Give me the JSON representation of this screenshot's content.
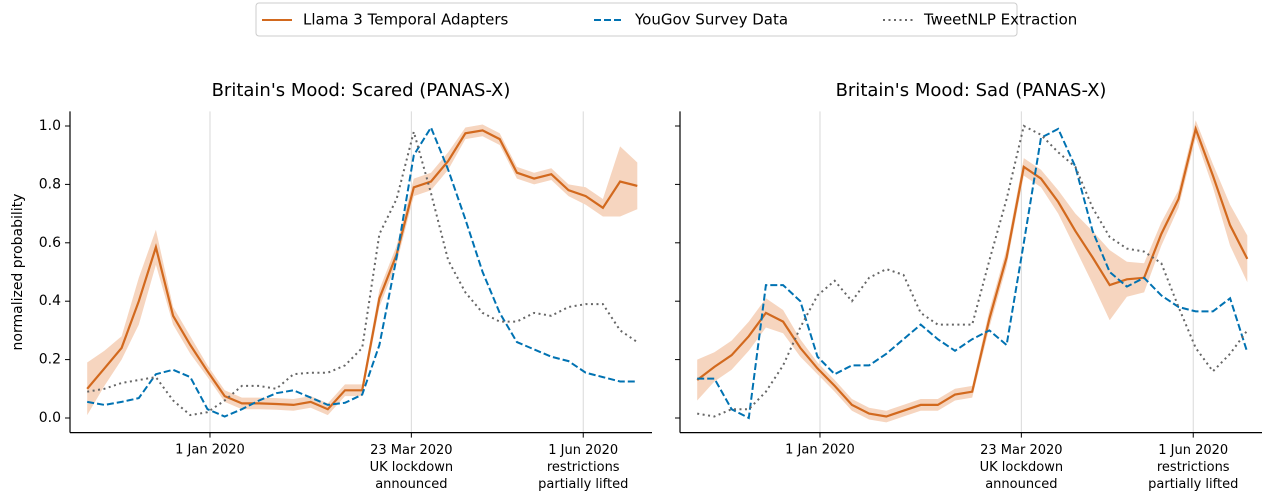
{
  "chart_data": [
    {
      "type": "line",
      "title": "Britain's Mood: Scared (PANAS-X)",
      "ylabel": "normalized probability",
      "x": [
        "2019-11-12",
        "2019-11-19",
        "2019-11-26",
        "2019-12-03",
        "2019-12-10",
        "2019-12-17",
        "2019-12-24",
        "2019-12-31",
        "2020-01-07",
        "2020-01-14",
        "2020-01-21",
        "2020-01-28",
        "2020-02-04",
        "2020-02-11",
        "2020-02-18",
        "2020-02-25",
        "2020-03-03",
        "2020-03-10",
        "2020-03-17",
        "2020-03-24",
        "2020-03-31",
        "2020-04-07",
        "2020-04-14",
        "2020-04-21",
        "2020-04-28",
        "2020-05-05",
        "2020-05-12",
        "2020-05-19",
        "2020-05-26",
        "2020-06-02",
        "2020-06-09",
        "2020-06-16",
        "2020-06-23"
      ],
      "xlim": [
        "2019-11-05",
        "2020-06-29"
      ],
      "xticks": [
        {
          "value": "2020-01-01",
          "label": "1 Jan 2020"
        },
        {
          "value": "2020-03-23",
          "label": "23 Mar 2020\nUK lockdown\nannounced"
        },
        {
          "value": "2020-06-01",
          "label": "1 Jun 2020\nrestrictions\npartially lifted"
        }
      ],
      "ylim": [
        -0.05,
        1.05
      ],
      "yticks": [
        {
          "value": 0,
          "label": "0.0"
        },
        0.2,
        0.4,
        0.6,
        0.8,
        {
          "value": 1,
          "label": "1.0"
        }
      ],
      "series": [
        {
          "name": "Llama 3 Temporal Adapters",
          "color": "#d2691e",
          "dash": "solid",
          "band_color": "#f6d5bf",
          "values": [
            0.1,
            0.17,
            0.24,
            0.4,
            0.585,
            0.35,
            0.25,
            0.16,
            0.075,
            0.05,
            0.05,
            0.048,
            0.045,
            0.055,
            0.03,
            0.095,
            0.095,
            0.41,
            0.56,
            0.79,
            0.81,
            0.88,
            0.975,
            0.985,
            0.955,
            0.84,
            0.82,
            0.835,
            0.78,
            0.76,
            0.72,
            0.81,
            0.795
          ],
          "errors": [
            0.09,
            0.06,
            0.04,
            0.08,
            0.06,
            0.03,
            0.03,
            0.02,
            0.02,
            0.02,
            0.02,
            0.02,
            0.02,
            0.02,
            0.02,
            0.02,
            0.02,
            0.03,
            0.03,
            0.03,
            0.03,
            0.03,
            0.02,
            0.02,
            0.02,
            0.02,
            0.02,
            0.02,
            0.02,
            0.03,
            0.03,
            0.12,
            0.08
          ]
        },
        {
          "name": "YouGov Survey Data",
          "color": "#0072b2",
          "dash": "dashed",
          "values": [
            0.055,
            0.045,
            0.055,
            0.068,
            0.15,
            0.165,
            0.14,
            0.03,
            0.005,
            0.03,
            0.06,
            0.085,
            0.095,
            0.07,
            0.045,
            0.052,
            0.08,
            0.25,
            0.55,
            0.9,
            0.995,
            0.85,
            0.68,
            0.5,
            0.36,
            0.26,
            0.235,
            0.21,
            0.195,
            0.155,
            0.14,
            0.125,
            0.125
          ]
        },
        {
          "name": "TweetNLP Extraction",
          "color": "#666666",
          "dash": "dotted",
          "values": [
            0.09,
            0.1,
            0.12,
            0.13,
            0.14,
            0.06,
            0.01,
            0.02,
            0.06,
            0.11,
            0.11,
            0.1,
            0.15,
            0.155,
            0.155,
            0.18,
            0.24,
            0.63,
            0.75,
            0.98,
            0.77,
            0.54,
            0.43,
            0.36,
            0.33,
            0.33,
            0.36,
            0.35,
            0.38,
            0.39,
            0.39,
            0.3,
            0.26
          ]
        }
      ]
    },
    {
      "type": "line",
      "title": "Britain's Mood: Sad (PANAS-X)",
      "x": [
        "2019-11-12",
        "2019-11-19",
        "2019-11-26",
        "2019-12-03",
        "2019-12-10",
        "2019-12-17",
        "2019-12-24",
        "2019-12-31",
        "2020-01-07",
        "2020-01-14",
        "2020-01-21",
        "2020-01-28",
        "2020-02-04",
        "2020-02-11",
        "2020-02-18",
        "2020-02-25",
        "2020-03-03",
        "2020-03-10",
        "2020-03-17",
        "2020-03-24",
        "2020-03-31",
        "2020-04-07",
        "2020-04-14",
        "2020-04-21",
        "2020-04-28",
        "2020-05-05",
        "2020-05-12",
        "2020-05-19",
        "2020-05-26",
        "2020-06-02",
        "2020-06-09",
        "2020-06-16",
        "2020-06-23"
      ],
      "xlim": [
        "2019-11-05",
        "2020-06-29"
      ],
      "xticks": [
        {
          "value": "2020-01-01",
          "label": "1 Jan 2020"
        },
        {
          "value": "2020-03-23",
          "label": "23 Mar 2020\nUK lockdown\nannounced"
        },
        {
          "value": "2020-06-01",
          "label": "1 Jun 2020\nrestrictions\npartially lifted"
        }
      ],
      "ylim": [
        -0.05,
        1.05
      ],
      "yticks": [
        0,
        0.2,
        0.4,
        0.6,
        0.8,
        1
      ],
      "series": [
        {
          "color": "#d2691e",
          "dash": "solid",
          "band_color": "#f6d5bf",
          "values": [
            0.13,
            0.175,
            0.215,
            0.28,
            0.36,
            0.33,
            0.24,
            0.17,
            0.11,
            0.045,
            0.015,
            0.005,
            0.025,
            0.045,
            0.045,
            0.08,
            0.09,
            0.34,
            0.55,
            0.86,
            0.82,
            0.74,
            0.64,
            0.55,
            0.455,
            0.475,
            0.48,
            0.63,
            0.75,
            0.99,
            0.83,
            0.66,
            0.545
          ],
          "errors": [
            0.07,
            0.05,
            0.05,
            0.05,
            0.05,
            0.04,
            0.03,
            0.02,
            0.02,
            0.02,
            0.02,
            0.02,
            0.02,
            0.02,
            0.02,
            0.02,
            0.02,
            0.03,
            0.03,
            0.03,
            0.03,
            0.04,
            0.06,
            0.09,
            0.12,
            0.06,
            0.05,
            0.04,
            0.03,
            0.03,
            0.04,
            0.07,
            0.08
          ]
        },
        {
          "color": "#0072b2",
          "dash": "dashed",
          "values": [
            0.135,
            0.135,
            0.03,
            0.0,
            0.455,
            0.455,
            0.4,
            0.21,
            0.15,
            0.18,
            0.18,
            0.22,
            0.27,
            0.32,
            0.27,
            0.23,
            0.27,
            0.3,
            0.25,
            0.6,
            0.96,
            0.99,
            0.86,
            0.64,
            0.5,
            0.45,
            0.48,
            0.42,
            0.38,
            0.365,
            0.365,
            0.41,
            0.225
          ]
        },
        {
          "color": "#666666",
          "dash": "dotted",
          "values": [
            0.015,
            0.005,
            0.03,
            0.03,
            0.09,
            0.18,
            0.31,
            0.42,
            0.47,
            0.4,
            0.48,
            0.51,
            0.49,
            0.36,
            0.32,
            0.32,
            0.32,
            0.54,
            0.75,
            1.0,
            0.97,
            0.91,
            0.86,
            0.72,
            0.62,
            0.58,
            0.57,
            0.53,
            0.38,
            0.24,
            0.16,
            0.22,
            0.3
          ]
        }
      ]
    }
  ]
}
